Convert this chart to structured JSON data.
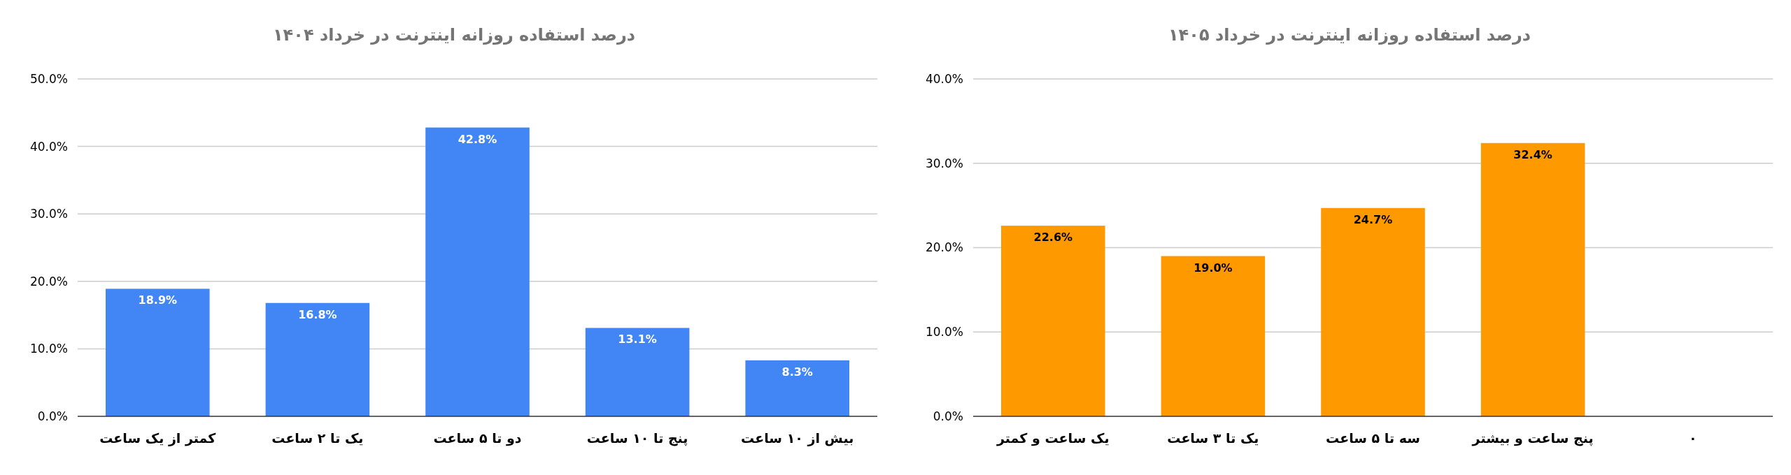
{
  "chart_data": [
    {
      "type": "bar",
      "title": "درصد استفاده روزانه اینترنت در خرداد ۱۴۰۴",
      "categories": [
        "کمتر از یک ساعت",
        "یک تا ۲ ساعت",
        "دو تا ۵ ساعت",
        "پنج تا ۱۰ ساعت",
        "بیش از ۱۰ ساعت"
      ],
      "series": [
        {
          "color": "#4285f4",
          "values": [
            18.9,
            16.8,
            42.8,
            13.1,
            8.3
          ],
          "value_labels": [
            "18.9%",
            "16.8%",
            "42.8%",
            "13.1%",
            "8.3%"
          ]
        }
      ],
      "ylim": [
        0,
        50
      ],
      "yticks": [
        {
          "value": 0,
          "label": "0.0%"
        },
        {
          "value": 10,
          "label": "10.0%"
        },
        {
          "value": 20,
          "label": "20.0%"
        },
        {
          "value": 30,
          "label": "30.0%"
        },
        {
          "value": 40,
          "label": "40.0%"
        },
        {
          "value": 50,
          "label": "50.0%"
        }
      ],
      "grid": "y"
    },
    {
      "type": "bar",
      "title": "درصد استفاده روزانه اینترنت در خرداد ۱۴۰۵",
      "categories": [
        "یک ساعت و کمتر",
        "یک تا ۳ ساعت",
        "سه تا ۵ ساعت",
        "پنج ساعت و بیشتر",
        "۰"
      ],
      "series": [
        {
          "color": "#ff9900",
          "values": [
            22.6,
            19.0,
            24.7,
            32.4,
            null
          ],
          "value_labels": [
            "22.6%",
            "19.0%",
            "24.7%",
            "32.4%",
            null
          ]
        }
      ],
      "ylim": [
        0,
        40
      ],
      "yticks": [
        {
          "value": 0,
          "label": "0.0%"
        },
        {
          "value": 10,
          "label": "10.0%"
        },
        {
          "value": 20,
          "label": "20.0%"
        },
        {
          "value": 30,
          "label": "30.0%"
        },
        {
          "value": 40,
          "label": "40.0%"
        }
      ],
      "grid": "y"
    }
  ]
}
